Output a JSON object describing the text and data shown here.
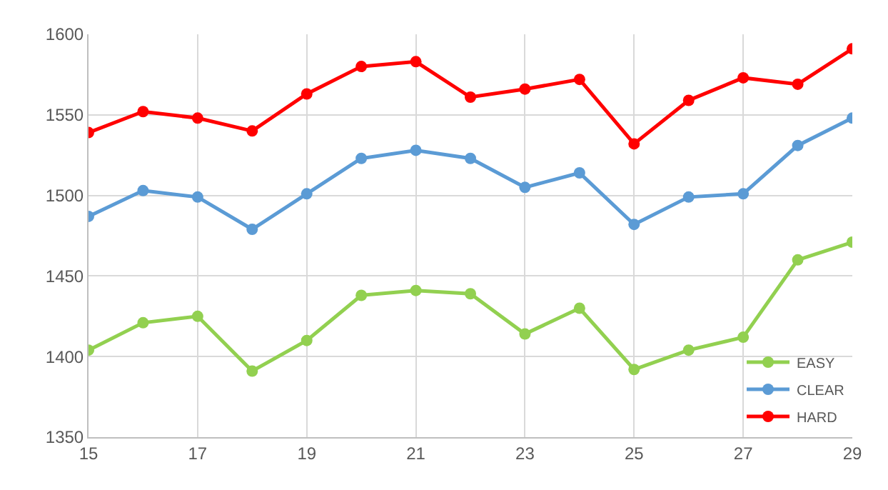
{
  "chart_data": {
    "type": "line",
    "x": [
      15,
      16,
      17,
      18,
      19,
      20,
      21,
      22,
      23,
      24,
      25,
      26,
      27,
      28,
      29
    ],
    "series": [
      {
        "name": "EASY",
        "color": "#92d050",
        "values": [
          1404,
          1421,
          1425,
          1391,
          1410,
          1438,
          1441,
          1439,
          1414,
          1430,
          1392,
          1404,
          1412,
          1460,
          1471
        ]
      },
      {
        "name": "CLEAR",
        "color": "#5b9bd5",
        "values": [
          1487,
          1503,
          1499,
          1479,
          1501,
          1523,
          1528,
          1523,
          1505,
          1514,
          1482,
          1499,
          1501,
          1531,
          1548
        ]
      },
      {
        "name": "HARD",
        "color": "#ff0000",
        "values": [
          1539,
          1552,
          1548,
          1540,
          1563,
          1580,
          1583,
          1561,
          1566,
          1572,
          1532,
          1559,
          1573,
          1569,
          1591
        ]
      }
    ],
    "xlim": [
      15,
      29
    ],
    "xticks": [
      15,
      17,
      19,
      21,
      23,
      25,
      27,
      29
    ],
    "ylim": [
      1350,
      1600
    ],
    "yticks": [
      1350,
      1400,
      1450,
      1500,
      1550,
      1600
    ],
    "grid": true,
    "legend": "bottom right",
    "marker": "circle",
    "line_style": "solid"
  }
}
